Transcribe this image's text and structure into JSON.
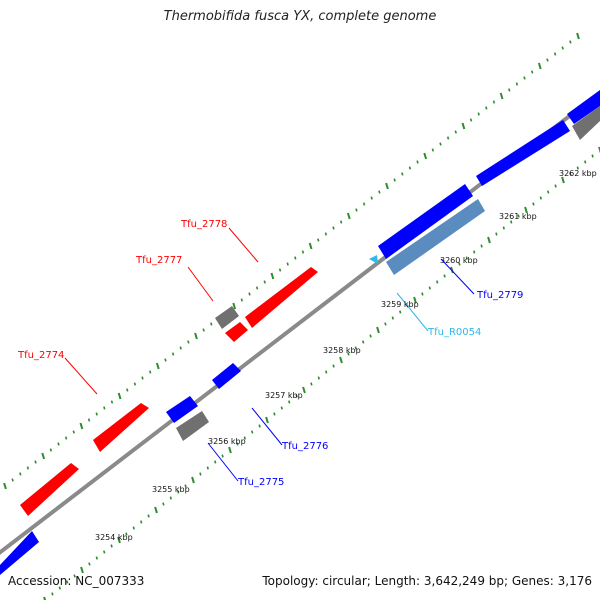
{
  "title": "Thermobifida fusca YX, complete genome",
  "accession": "Accession: NC_007333",
  "summary": "Topology: circular; Length: 3,642,249 bp; Genes: 3,176",
  "colors": {
    "forward_gene": "#ff0000",
    "reverse_gene": "#0000ff",
    "other_feature": "#808080",
    "rna_feature": "#5b8cbf",
    "rna_label": "#30b8e8",
    "backbone": "#888888",
    "ruler_dots": "#2e8b2e"
  },
  "tick_labels": [
    "3254 kbp",
    "3255 kbp",
    "3256 kbp",
    "3257 kbp",
    "3258 kbp",
    "3259 kbp",
    "3260 kbp",
    "3261 kbp",
    "3262 kbp"
  ],
  "gene_labels": [
    {
      "id": "tfu2774",
      "text": "Tfu_2774",
      "color": "#ff0000"
    },
    {
      "id": "tfu2777",
      "text": "Tfu_2777",
      "color": "#ff0000"
    },
    {
      "id": "tfu2778",
      "text": "Tfu_2778",
      "color": "#ff0000"
    },
    {
      "id": "tfu2775",
      "text": "Tfu_2775",
      "color": "#0000ff"
    },
    {
      "id": "tfu2776",
      "text": "Tfu_2776",
      "color": "#0000ff"
    },
    {
      "id": "tfu2779",
      "text": "Tfu_2779",
      "color": "#0000ff"
    },
    {
      "id": "tfur0054",
      "text": "Tfu_R0054",
      "color": "#30b8e8"
    }
  ]
}
